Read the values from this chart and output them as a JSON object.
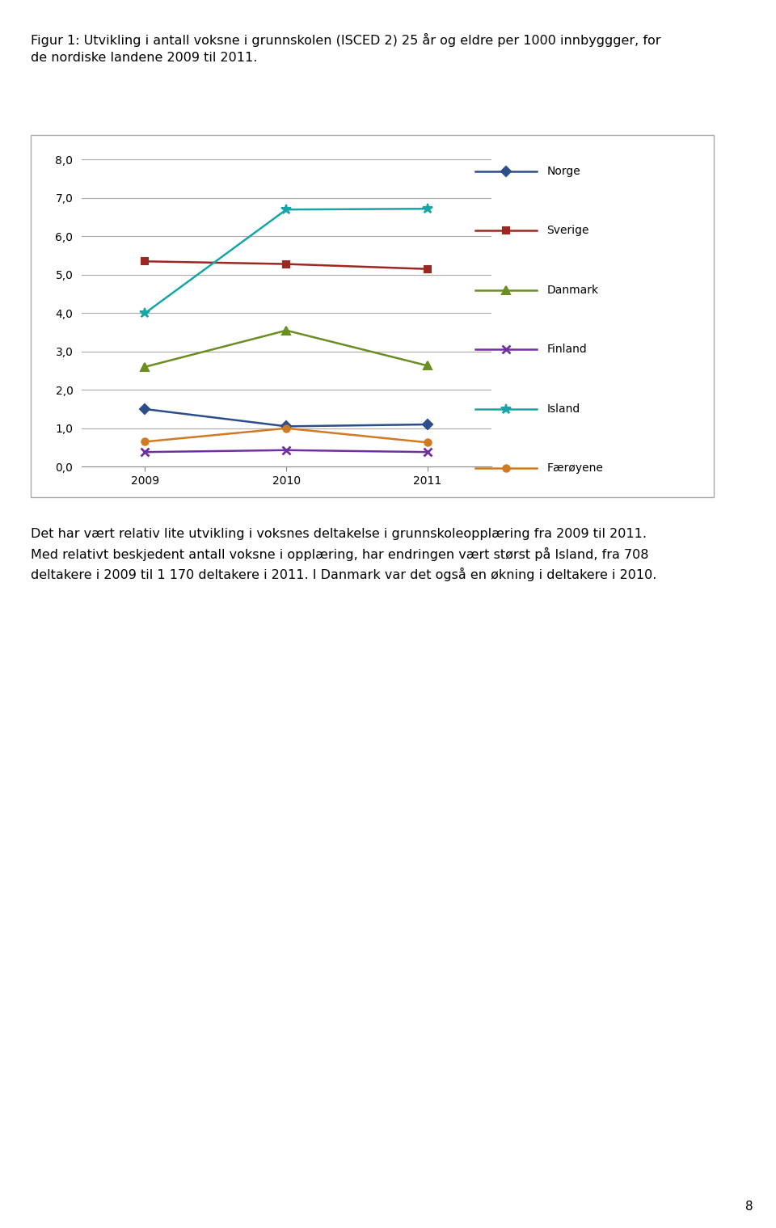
{
  "years": [
    2009,
    2010,
    2011
  ],
  "series": {
    "Norge": {
      "values": [
        1.5,
        1.05,
        1.1
      ],
      "color": "#2E4D8B"
    },
    "Sverige": {
      "values": [
        5.35,
        5.28,
        5.15
      ],
      "color": "#9B2922"
    },
    "Danmark": {
      "values": [
        2.6,
        3.55,
        2.63
      ],
      "color": "#6B8E23"
    },
    "Finland": {
      "values": [
        0.38,
        0.43,
        0.38
      ],
      "color": "#7030A0"
    },
    "Island": {
      "values": [
        4.0,
        6.7,
        6.72
      ],
      "color": "#17A5A5"
    },
    "Færøyene": {
      "values": [
        0.65,
        1.0,
        0.63
      ],
      "color": "#D17A22"
    }
  },
  "marker_styles": {
    "Norge": {
      "marker": "D",
      "ms": 6,
      "mew": 1.5
    },
    "Sverige": {
      "marker": "s",
      "ms": 6,
      "mew": 1.5
    },
    "Danmark": {
      "marker": "^",
      "ms": 7,
      "mew": 1.5
    },
    "Finland": {
      "marker": "x",
      "ms": 7,
      "mew": 2.0
    },
    "Island": {
      "marker": "*",
      "ms": 9,
      "mew": 1.5
    },
    "Færøyene": {
      "marker": "o",
      "ms": 6,
      "mew": 1.5
    }
  },
  "ylim": [
    0.0,
    8.0
  ],
  "yticks": [
    0.0,
    1.0,
    2.0,
    3.0,
    4.0,
    5.0,
    6.0,
    7.0,
    8.0
  ],
  "ytick_labels": [
    "0,0",
    "1,0",
    "2,0",
    "3,0",
    "4,0",
    "5,0",
    "6,0",
    "7,0",
    "8,0"
  ],
  "title_line1": "Figur 1: Utvikling i antall voksne i grunnskolen (ISCED 2) 25 år og eldre per 1000 innbyggger, for",
  "title_line2": "de nordiske landene 2009 til 2011.",
  "body_text": "Det har vært relativ lite utvikling i voksnes deltakelse i grunnskoleopplæring fra 2009 til 2011.\nMed relativt beskjedent antall voksne i opplæring, har endringen vært størst på Island, fra 708\ndeltakere i 2009 til 1 170 deltakere i 2011. I Danmark var det også en økning i deltakere i 2010.",
  "background_color": "#FFFFFF",
  "chart_bg_color": "#FFFFFF",
  "grid_color": "#AAAAAA",
  "legend_order": [
    "Norge",
    "Sverige",
    "Danmark",
    "Finland",
    "Island",
    "Færøyene"
  ],
  "page_number": "8",
  "box_edge_color": "#AAAAAA"
}
